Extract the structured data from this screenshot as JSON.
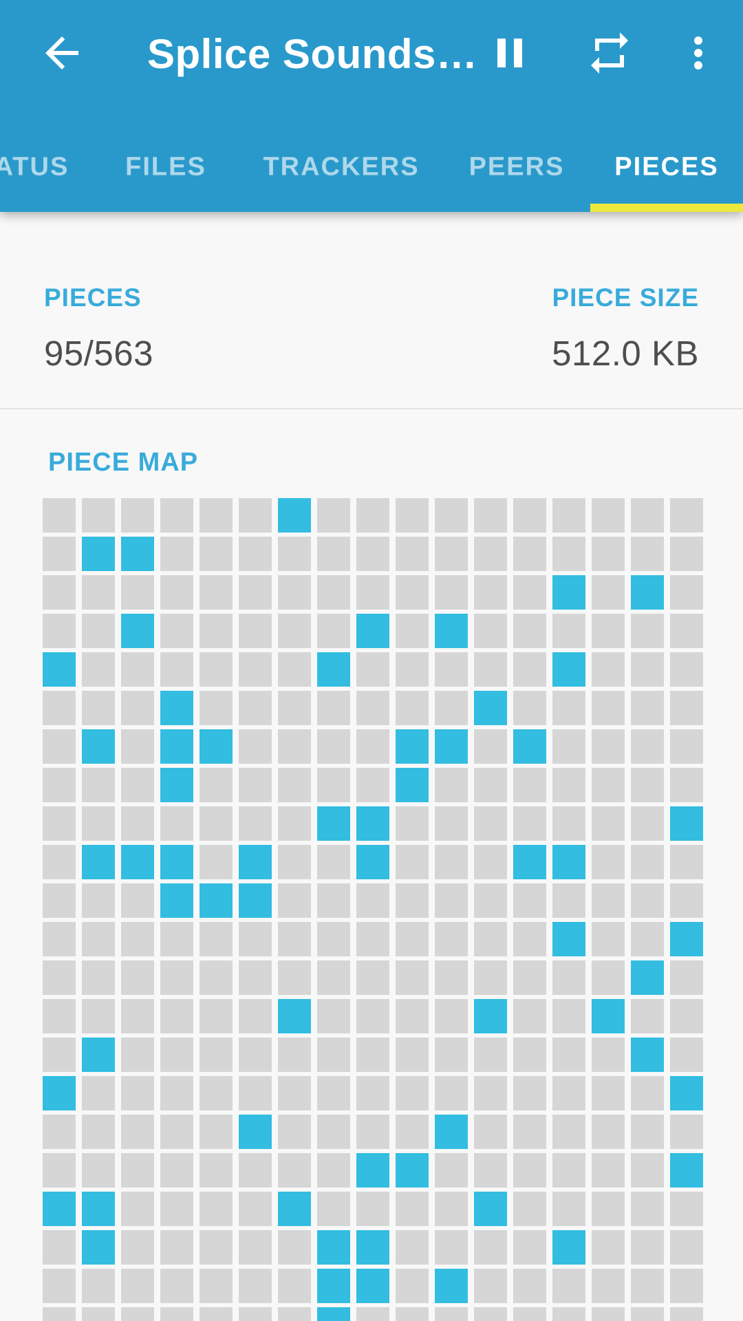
{
  "app_bar": {
    "title": "Splice Sounds…",
    "back_icon": "arrow-left",
    "actions": [
      {
        "name": "pause",
        "icon": "pause-icon"
      },
      {
        "name": "repeat",
        "icon": "repeat-icon"
      },
      {
        "name": "overflow-menu",
        "icon": "more-vert-icon"
      }
    ]
  },
  "tabs": {
    "items": [
      {
        "label": "ATUS",
        "active": false
      },
      {
        "label": "FILES",
        "active": false
      },
      {
        "label": "TRACKERS",
        "active": false
      },
      {
        "label": "PEERS",
        "active": false
      },
      {
        "label": "PIECES",
        "active": true
      }
    ]
  },
  "stats": {
    "pieces_label": "PIECES",
    "pieces_value": "95/563",
    "piece_size_label": "PIECE SIZE",
    "piece_size_value": "512.0 KB"
  },
  "piece_map": {
    "title": "PIECE MAP",
    "columns": 17,
    "visible_rows": 22,
    "rows": [
      [
        6
      ],
      [
        1,
        2
      ],
      [
        13,
        15
      ],
      [
        2,
        8,
        10
      ],
      [
        0,
        7,
        13
      ],
      [
        3,
        11
      ],
      [
        1,
        3,
        4,
        9,
        10,
        12
      ],
      [
        3,
        9
      ],
      [
        7,
        8,
        16
      ],
      [
        1,
        2,
        3,
        5,
        8,
        12,
        13
      ],
      [
        3,
        4,
        5
      ],
      [
        13,
        16
      ],
      [
        15
      ],
      [
        6,
        11,
        14
      ],
      [
        1,
        15
      ],
      [
        0,
        16
      ],
      [
        5,
        10
      ],
      [
        8,
        9,
        16
      ],
      [
        0,
        1,
        6,
        11
      ],
      [
        1,
        7,
        8,
        13
      ],
      [
        7,
        8,
        10
      ],
      [
        7
      ]
    ]
  },
  "colors": {
    "appbar": "#2999CB",
    "accent": "#38ABDB",
    "indicator": "#EDE93C",
    "cell_on": "#32BDE1",
    "cell_off": "#D6D6D6",
    "bg": "#F8F8F8",
    "text_dark": "#4E4E4E"
  }
}
